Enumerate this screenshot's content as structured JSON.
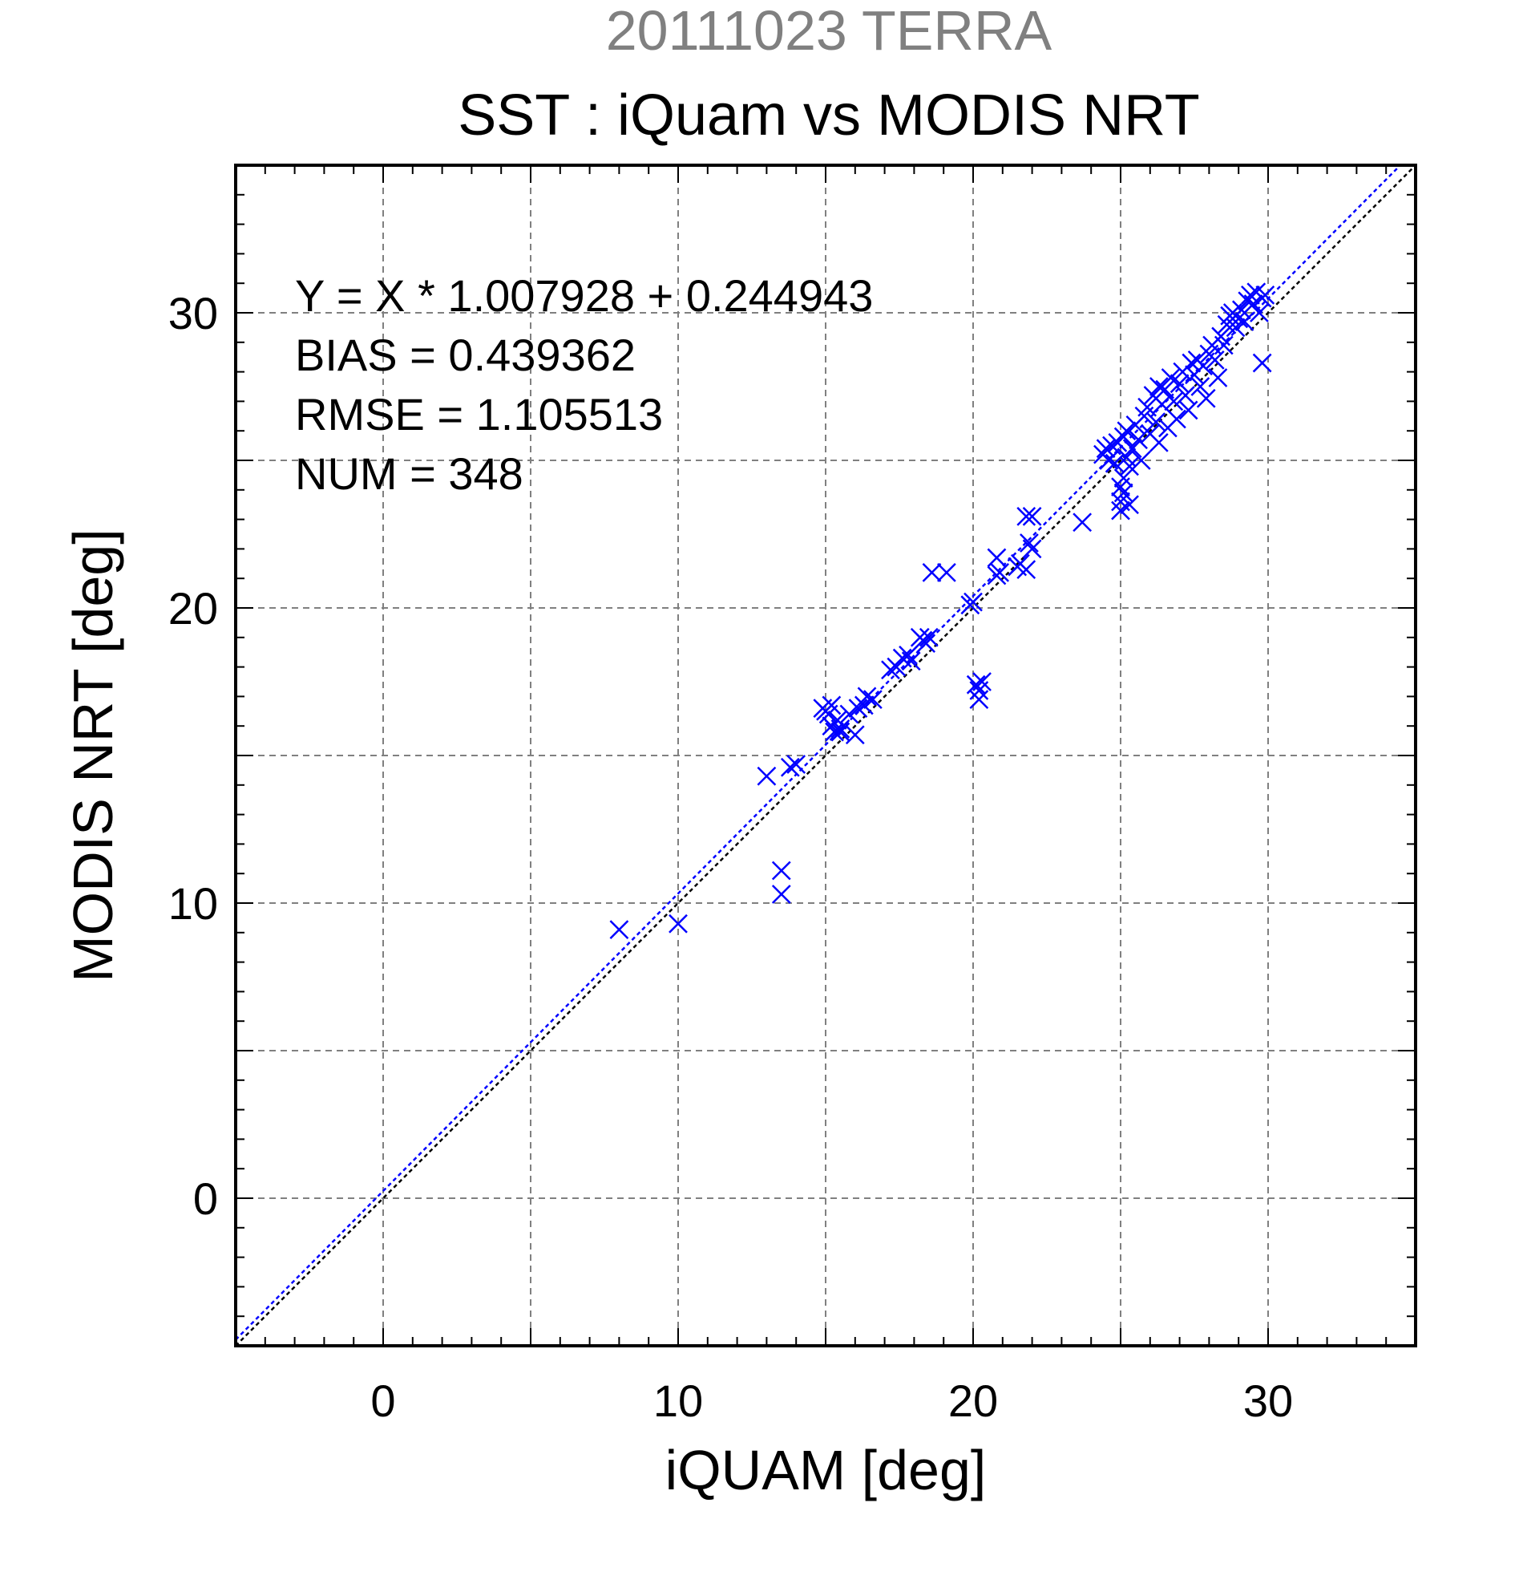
{
  "chart_data": {
    "type": "scatter",
    "header": "20111023 TERRA",
    "title": "SST : iQuam vs MODIS NRT",
    "xlabel": "iQUAM [deg]",
    "ylabel": "MODIS NRT [deg]",
    "xlim": [
      -5,
      35
    ],
    "ylim": [
      -5,
      35
    ],
    "major_ticks": [
      0,
      10,
      20,
      30
    ],
    "x_tick_labels": [
      "0",
      "10",
      "20",
      "30"
    ],
    "y_tick_labels": [
      "0",
      "10",
      "20",
      "30"
    ],
    "grid": true,
    "grid_step": 5,
    "marker": "x",
    "colors": {
      "points": "#0000ff",
      "regression_line": "#0000ff",
      "identity_line": "#000000",
      "header_text": "#808080",
      "grid": "#808080"
    },
    "stats": {
      "equation": "Y = X * 1.007928 + 0.244943",
      "bias": "BIAS = 0.439362",
      "rmse": "RMSE = 1.105513",
      "num": "NUM = 348"
    },
    "regression": {
      "slope": 1.007928,
      "intercept": 0.244943
    },
    "points": [
      [
        8.0,
        9.1
      ],
      [
        10.0,
        9.3
      ],
      [
        13.0,
        14.3
      ],
      [
        13.5,
        11.1
      ],
      [
        13.5,
        10.3
      ],
      [
        13.8,
        14.6
      ],
      [
        14.0,
        14.7
      ],
      [
        14.9,
        16.6
      ],
      [
        15.0,
        16.5
      ],
      [
        15.1,
        16.4
      ],
      [
        15.2,
        16.7
      ],
      [
        15.2,
        16.0
      ],
      [
        15.3,
        15.8
      ],
      [
        15.4,
        16.2
      ],
      [
        15.5,
        15.8
      ],
      [
        15.5,
        15.9
      ],
      [
        15.8,
        16.4
      ],
      [
        16.0,
        15.7
      ],
      [
        16.1,
        16.6
      ],
      [
        16.3,
        16.7
      ],
      [
        16.4,
        17.0
      ],
      [
        16.6,
        16.9
      ],
      [
        17.2,
        17.9
      ],
      [
        17.4,
        18.0
      ],
      [
        17.6,
        18.3
      ],
      [
        17.8,
        18.4
      ],
      [
        17.9,
        18.2
      ],
      [
        18.2,
        19.0
      ],
      [
        18.3,
        18.9
      ],
      [
        18.4,
        18.8
      ],
      [
        18.5,
        19.0
      ],
      [
        18.6,
        21.2
      ],
      [
        19.1,
        21.2
      ],
      [
        19.9,
        20.1
      ],
      [
        20.0,
        20.2
      ],
      [
        20.1,
        17.4
      ],
      [
        20.2,
        16.9
      ],
      [
        20.2,
        17.2
      ],
      [
        20.3,
        17.5
      ],
      [
        20.8,
        21.1
      ],
      [
        20.8,
        21.7
      ],
      [
        20.9,
        21.2
      ],
      [
        21.5,
        21.4
      ],
      [
        21.6,
        21.5
      ],
      [
        21.8,
        21.3
      ],
      [
        21.8,
        23.1
      ],
      [
        21.9,
        22.2
      ],
      [
        22.0,
        23.1
      ],
      [
        22.0,
        22.0
      ],
      [
        23.7,
        22.9
      ],
      [
        24.4,
        25.2
      ],
      [
        24.5,
        25.4
      ],
      [
        24.6,
        25.0
      ],
      [
        24.7,
        25.5
      ],
      [
        24.8,
        24.9
      ],
      [
        24.9,
        25.6
      ],
      [
        25.0,
        23.3
      ],
      [
        25.0,
        23.6
      ],
      [
        25.0,
        24.1
      ],
      [
        25.1,
        24.4
      ],
      [
        25.1,
        23.9
      ],
      [
        25.1,
        25.8
      ],
      [
        25.2,
        25.1
      ],
      [
        25.2,
        26.0
      ],
      [
        25.3,
        24.8
      ],
      [
        25.3,
        23.5
      ],
      [
        25.4,
        25.4
      ],
      [
        25.5,
        26.2
      ],
      [
        25.6,
        25.7
      ],
      [
        25.7,
        25.0
      ],
      [
        25.8,
        26.5
      ],
      [
        25.9,
        26.8
      ],
      [
        26.0,
        25.9
      ],
      [
        26.1,
        27.2
      ],
      [
        26.2,
        26.3
      ],
      [
        26.3,
        25.6
      ],
      [
        26.3,
        27.5
      ],
      [
        26.4,
        26.9
      ],
      [
        26.5,
        27.4
      ],
      [
        26.6,
        26.1
      ],
      [
        26.7,
        27.8
      ],
      [
        26.8,
        27.0
      ],
      [
        26.9,
        26.4
      ],
      [
        27.0,
        27.6
      ],
      [
        27.1,
        28.0
      ],
      [
        27.2,
        27.2
      ],
      [
        27.3,
        26.7
      ],
      [
        27.4,
        28.3
      ],
      [
        27.5,
        27.9
      ],
      [
        27.6,
        28.4
      ],
      [
        27.7,
        27.5
      ],
      [
        27.8,
        28.2
      ],
      [
        27.9,
        27.1
      ],
      [
        28.0,
        28.6
      ],
      [
        28.1,
        28.9
      ],
      [
        28.2,
        28.4
      ],
      [
        28.3,
        27.8
      ],
      [
        28.4,
        29.2
      ],
      [
        28.5,
        28.9
      ],
      [
        28.6,
        29.6
      ],
      [
        28.7,
        29.9
      ],
      [
        28.8,
        30.0
      ],
      [
        28.9,
        29.5
      ],
      [
        29.0,
        29.8
      ],
      [
        29.1,
        30.1
      ],
      [
        29.2,
        29.7
      ],
      [
        29.3,
        30.4
      ],
      [
        29.4,
        30.6
      ],
      [
        29.5,
        30.3
      ],
      [
        29.6,
        30.7
      ],
      [
        29.7,
        30.0
      ],
      [
        29.8,
        30.5
      ],
      [
        29.8,
        28.3
      ],
      [
        29.9,
        30.6
      ]
    ]
  }
}
